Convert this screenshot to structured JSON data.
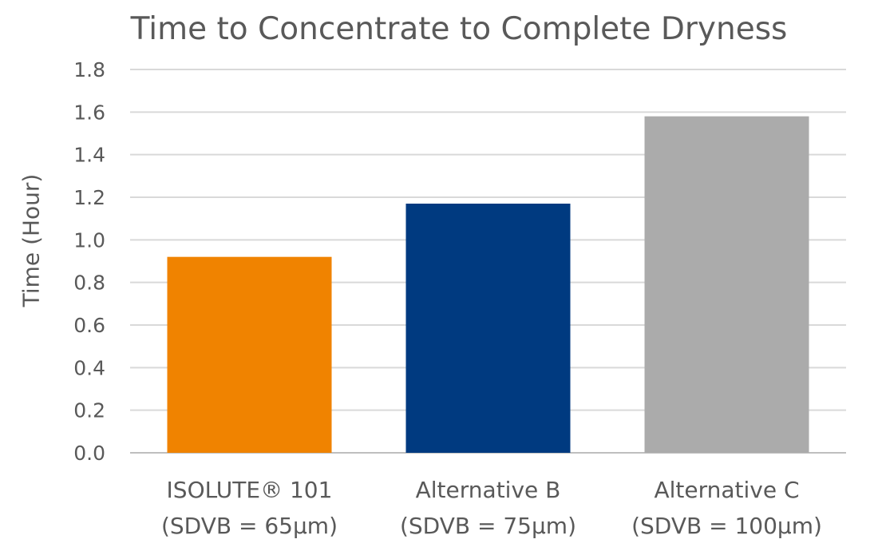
{
  "chart_data": {
    "type": "bar",
    "title": "Time to Concentrate to Complete Dryness",
    "xlabel": "",
    "ylabel": "Time (Hour)",
    "ylim": [
      0,
      1.8
    ],
    "yticks": [
      "0.0",
      "0.2",
      "0.4",
      "0.6",
      "0.8",
      "1.0",
      "1.2",
      "1.4",
      "1.6",
      "1.8"
    ],
    "grid": true,
    "categories": [
      {
        "line1": "ISOLUTE® 101",
        "line2": "(SDVB = 65µm)"
      },
      {
        "line1": "Alternative B",
        "line2": "(SDVB = 75µm)"
      },
      {
        "line1": "Alternative C",
        "line2": "(SDVB = 100µm)"
      }
    ],
    "values": [
      0.92,
      1.17,
      1.58
    ],
    "colors": [
      "#F08300",
      "#003A80",
      "#ABABAB"
    ]
  }
}
